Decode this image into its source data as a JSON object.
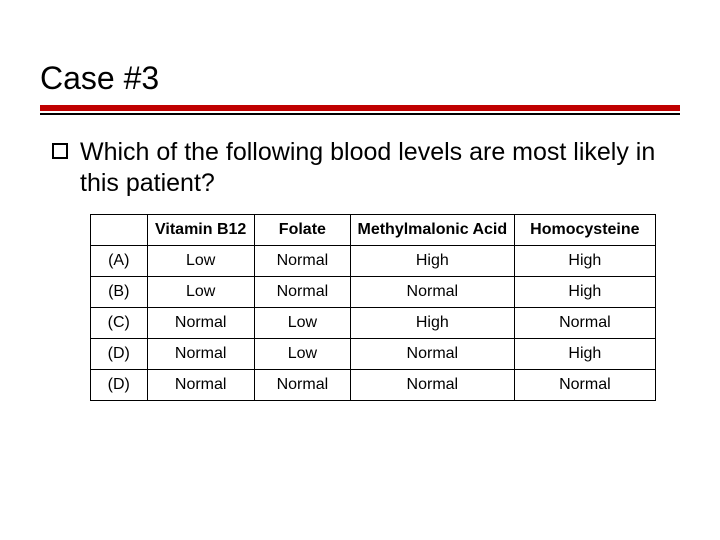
{
  "title": "Case #3",
  "bullet_question": "Which of the following blood levels are most likely in this patient?",
  "table": {
    "columns": [
      "",
      "Vitamin B12",
      "Folate",
      "Methylmalonic Acid",
      "Homocysteine"
    ],
    "rows": [
      [
        "(A)",
        "Low",
        "Normal",
        "High",
        "High"
      ],
      [
        "(B)",
        "Low",
        "Normal",
        "Normal",
        "High"
      ],
      [
        "(C)",
        "Normal",
        "Low",
        "High",
        "Normal"
      ],
      [
        "(D)",
        "Normal",
        "Low",
        "Normal",
        "High"
      ],
      [
        "(D)",
        "Normal",
        "Normal",
        "Normal",
        "Normal"
      ]
    ],
    "col_widths_pct": [
      10,
      19,
      17,
      29,
      25
    ],
    "header_fontweight": "bold",
    "cell_fontsize": 16,
    "border_color": "#000000"
  },
  "colors": {
    "accent_red": "#c00000",
    "text": "#000000",
    "background": "#ffffff"
  },
  "typography": {
    "title_fontsize": 32,
    "question_fontsize": 25,
    "font_family": "Verdana"
  }
}
